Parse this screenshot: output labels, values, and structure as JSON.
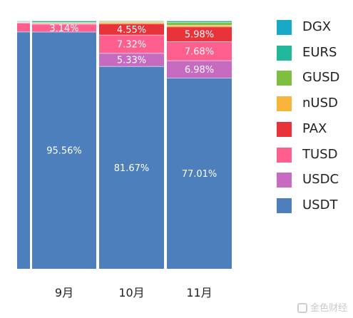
{
  "chart_data": {
    "type": "bar",
    "stacked": true,
    "percent_stacked": true,
    "categories": [
      "",
      "9月",
      "10月",
      "11月"
    ],
    "series": [
      {
        "name": "USDT",
        "color": "#4d7fbd",
        "values": [
          95.6,
          95.56,
          81.67,
          77.01
        ],
        "labels": [
          "",
          "95.56%",
          "81.67%",
          "77.01%"
        ]
      },
      {
        "name": "USDC",
        "color": "#c66bbf",
        "values": [
          0.0,
          0.0,
          5.33,
          6.98
        ],
        "labels": [
          "",
          "",
          "5.33%",
          "6.98%"
        ]
      },
      {
        "name": "TUSD",
        "color": "#ff5f8f",
        "values": [
          3.6,
          3.14,
          7.32,
          7.68
        ],
        "labels": [
          "",
          "3.14%",
          "7.32%",
          "7.68%"
        ]
      },
      {
        "name": "PAX",
        "color": "#e8333a",
        "values": [
          0.2,
          0.3,
          4.55,
          5.98
        ],
        "labels": [
          "",
          "",
          "4.55%",
          "5.98%"
        ]
      },
      {
        "name": "nUSD",
        "color": "#f7b53b",
        "values": [
          0.1,
          0.2,
          0.6,
          0.6
        ],
        "labels": [
          "",
          "",
          "",
          ""
        ]
      },
      {
        "name": "GUSD",
        "color": "#7fbf3f",
        "values": [
          0.1,
          0.2,
          0.3,
          1.15
        ],
        "labels": [
          "",
          "",
          "",
          ""
        ]
      },
      {
        "name": "EURS",
        "color": "#1fb89a",
        "values": [
          0.3,
          0.6,
          0.23,
          0.6
        ],
        "labels": [
          "",
          "",
          "",
          ""
        ]
      },
      {
        "name": "DGX",
        "color": "#18a9c8",
        "values": [
          0.1,
          0.0,
          0.0,
          0.0
        ],
        "labels": [
          "",
          "",
          "",
          ""
        ]
      }
    ],
    "legend_order": [
      "DGX",
      "EURS",
      "GUSD",
      "nUSD",
      "PAX",
      "TUSD",
      "USDC",
      "USDT"
    ],
    "ylim": [
      0,
      100
    ],
    "legend_position": "right"
  },
  "watermark": "金色财经"
}
